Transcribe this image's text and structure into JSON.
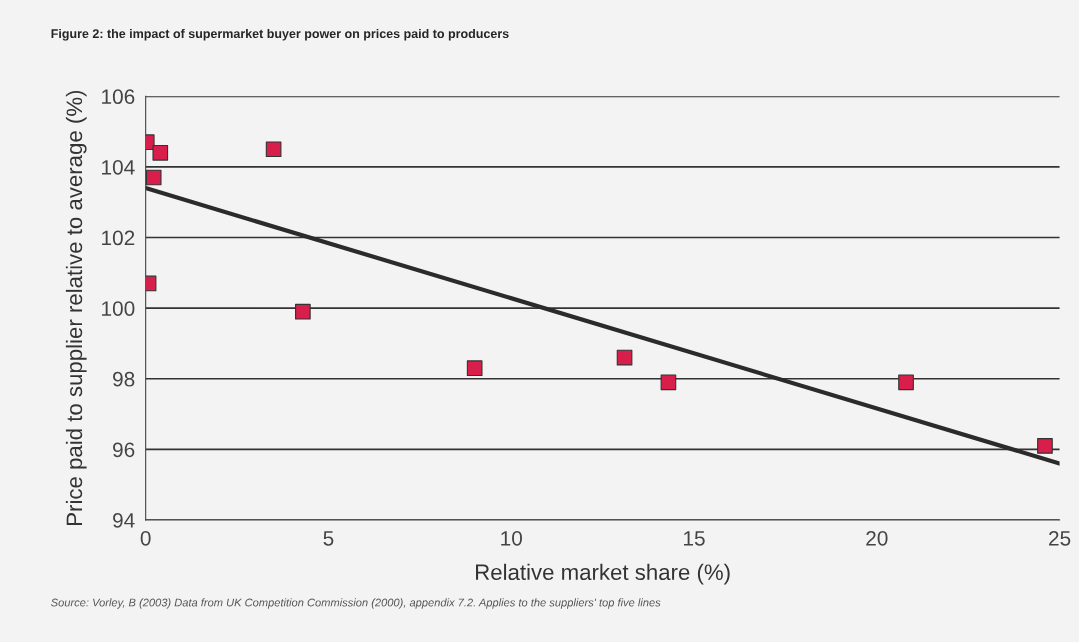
{
  "chart_data": {
    "type": "scatter",
    "title": "Figure 2: the impact of supermarket buyer power on prices paid to producers",
    "xlabel": "Relative market share (%)",
    "ylabel": "Price paid to supplier relative to average (%)",
    "series": [
      {
        "color": "#d81e4b",
        "marker": "square",
        "x": [
          0.03,
          0.4,
          0.22,
          3.5,
          0.08,
          4.3,
          9.0,
          13.1,
          14.3,
          20.8,
          24.6
        ],
        "values": [
          104.7,
          104.4,
          103.7,
          104.5,
          100.7,
          99.9,
          98.3,
          98.6,
          97.9,
          97.9,
          96.1
        ]
      },
      {
        "type": "line",
        "color": "#2b2b2b",
        "x": [
          0,
          25
        ],
        "values": [
          103.4,
          95.6
        ]
      }
    ],
    "xlim": [
      0,
      25
    ],
    "xticks": [
      0,
      5,
      10,
      15,
      20,
      25
    ],
    "ylim": [
      94,
      106
    ],
    "yticks": [
      94,
      96,
      98,
      100,
      102,
      104,
      106
    ],
    "grid": "y",
    "annotations": [
      "Source: Vorley, B (2003) Data from UK Competition Commission (2000), appendix 7.2. Applies to the suppliers' top five lines"
    ]
  }
}
